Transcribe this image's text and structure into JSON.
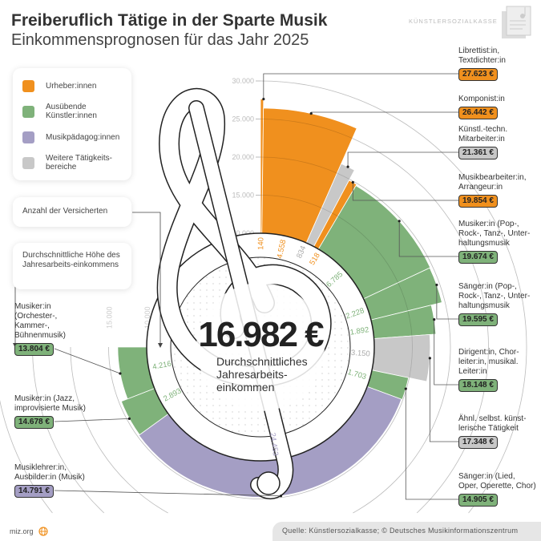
{
  "header": {
    "title": "Freiberuflich Tätige in der Sparte Musik",
    "subtitle": "Einkommensprognosen für das Jahr 2025",
    "brand": "KÜNSTLERSOZIALKASSE"
  },
  "legend": {
    "items": [
      {
        "label": "Urheber:innen",
        "color": "#F0901E"
      },
      {
        "label": "Ausübende Künstler:innen",
        "color": "#7FB27A"
      },
      {
        "label": "Musikpädagog:innen",
        "color": "#A49EC4"
      },
      {
        "label": "Weitere Tätigkeits-bereiche",
        "color": "#C8C8C8"
      }
    ],
    "count_note": "Anzahl der Versicherten",
    "income_note": "Durchschnittliche Höhe des Jahresarbeits-einkommens"
  },
  "center": {
    "value": "16.982 €",
    "line1": "Durchschnittliches",
    "line2": "Jahresarbeits-",
    "line3": "einkommen"
  },
  "chart_data": {
    "type": "radial-bar",
    "title": "Freiberuflich Tätige in der Sparte Musik",
    "subtitle": "Einkommensprognosen für das Jahr 2025",
    "radial_axis": {
      "ticks": [
        "10.000",
        "15.000",
        "20.000",
        "25.000",
        "30.000"
      ],
      "range": [
        10000,
        30000
      ]
    },
    "angular_width": "Anzahl der Versicherten",
    "radial_value": "Durchschnittliches Jahresarbeitseinkommen (€)",
    "series": [
      {
        "label": "Librettist:in, Textdichter:in",
        "category": "Urheber:innen",
        "count": 140,
        "count_label": "140",
        "income": 27623,
        "income_label": "27.623 €",
        "color": "#F0901E"
      },
      {
        "label": "Komponist:in",
        "category": "Urheber:innen",
        "count": 4558,
        "count_label": "4.558",
        "income": 26442,
        "income_label": "26.442 €",
        "color": "#F0901E"
      },
      {
        "label": "Künstl.-techn. Mitarbeiter:in",
        "category": "Weitere Tätigkeitsbereiche",
        "count": 834,
        "count_label": "834",
        "income": 21361,
        "income_label": "21.361 €",
        "color": "#C8C8C8"
      },
      {
        "label": "Musikbearbeiter:in, Arrangeur:in",
        "category": "Urheber:innen",
        "count": 518,
        "count_label": "518",
        "income": 19854,
        "income_label": "19.854 €",
        "color": "#F0901E"
      },
      {
        "label": "Musiker:in (Pop-, Rock-, Tanz-, Unter-haltungsmusik",
        "category": "Ausübende Künstler:innen",
        "count": 6785,
        "count_label": "6.785",
        "income": 19674,
        "income_label": "19.674 €",
        "color": "#7FB27A"
      },
      {
        "label": "Sänger:in (Pop-, Rock-, Tanz-, Unter-haltungsmusik",
        "category": "Ausübende Künstler:innen",
        "count": 2228,
        "count_label": "2.228",
        "income": 19595,
        "income_label": "19.595 €",
        "color": "#7FB27A"
      },
      {
        "label": "Dirigent:in, Chor-leiter:in, musikal. Leiter:in",
        "category": "Ausübende Künstler:innen",
        "count": 1892,
        "count_label": "1.892",
        "income": 18148,
        "income_label": "18.148 €",
        "color": "#7FB27A"
      },
      {
        "label": "Ähnl. selbst. künst-lerische Tätigkeit",
        "category": "Weitere Tätigkeitsbereiche",
        "count": 3150,
        "count_label": "3.150",
        "income": 17348,
        "income_label": "17.348 €",
        "color": "#C8C8C8"
      },
      {
        "label": "Sänger:in (Lied, Oper, Operette, Chor)",
        "category": "Ausübende Künstler:innen",
        "count": 1703,
        "count_label": "1.703",
        "income": 14905,
        "income_label": "14.905 €",
        "color": "#7FB27A"
      },
      {
        "label": "Musiklehrer:in, Ausbilder:in (Musik)",
        "category": "Musikpädagog:innen",
        "count": 24453,
        "count_label": "24.453",
        "income": 14791,
        "income_label": "14.791 €",
        "color": "#A49EC4"
      },
      {
        "label": "Musiker:in (Jazz, improvisierte Musik)",
        "category": "Ausübende Künstler:innen",
        "count": 2893,
        "count_label": "2.893",
        "income": 14678,
        "income_label": "14.678 €",
        "color": "#7FB27A"
      },
      {
        "label": "Musiker:in (Orchester-, Kammer-, Bühnenmusik)",
        "category": "Ausübende Künstler:innen",
        "count": 4216,
        "count_label": "4.216",
        "income": 13804,
        "income_label": "13.804 €",
        "color": "#7FB27A"
      }
    ]
  },
  "labels": [
    {
      "lines": [
        "Librettist:in,",
        "Textdichter:in"
      ],
      "badge": "27.623 €",
      "color": "#F0901E"
    },
    {
      "lines": [
        "Komponist:in"
      ],
      "badge": "26.442 €",
      "color": "#F0901E"
    },
    {
      "lines": [
        "Künstl.-techn.",
        "Mitarbeiter:in"
      ],
      "badge": "21.361 €",
      "color": "#C8C8C8"
    },
    {
      "lines": [
        "Musikbearbeiter:in,",
        "Arrangeur:in"
      ],
      "badge": "19.854 €",
      "color": "#F0901E"
    },
    {
      "lines": [
        "Musiker:in (Pop-,",
        "Rock-, Tanz-, Unter-",
        "haltungsmusik"
      ],
      "badge": "19.674 €",
      "color": "#7FB27A"
    },
    {
      "lines": [
        "Sänger:in (Pop-,",
        "Rock-, Tanz-, Unter-",
        "haltungsmusik"
      ],
      "badge": "19.595 €",
      "color": "#7FB27A"
    },
    {
      "lines": [
        "Dirigent:in, Chor-",
        "leiter:in, musikal.",
        "Leiter:in"
      ],
      "badge": "18.148 €",
      "color": "#7FB27A"
    },
    {
      "lines": [
        "Ähnl. selbst. künst-",
        "lerische Tätigkeit"
      ],
      "badge": "17.348 €",
      "color": "#C8C8C8"
    },
    {
      "lines": [
        "Sänger:in (Lied,",
        "Oper, Operette, Chor)"
      ],
      "badge": "14.905 €",
      "color": "#7FB27A"
    },
    {
      "lines": [
        "Musiklehrer:in,",
        "Ausbilder:in (Musik)"
      ],
      "badge": "14.791 €",
      "color": "#A49EC4"
    },
    {
      "lines": [
        "Musiker:in (Jazz,",
        "improvisierte Musik)"
      ],
      "badge": "14.678 €",
      "color": "#7FB27A"
    },
    {
      "lines": [
        "Musiker:in",
        "(Orchester-,",
        "Kammer-,",
        "Bühnenmusik)"
      ],
      "badge": "13.804 €",
      "color": "#7FB27A"
    }
  ],
  "footer": {
    "site": "miz.org",
    "source": "Quelle: Künstlersozialkasse; © Deutsches Musikinformationszentrum"
  }
}
